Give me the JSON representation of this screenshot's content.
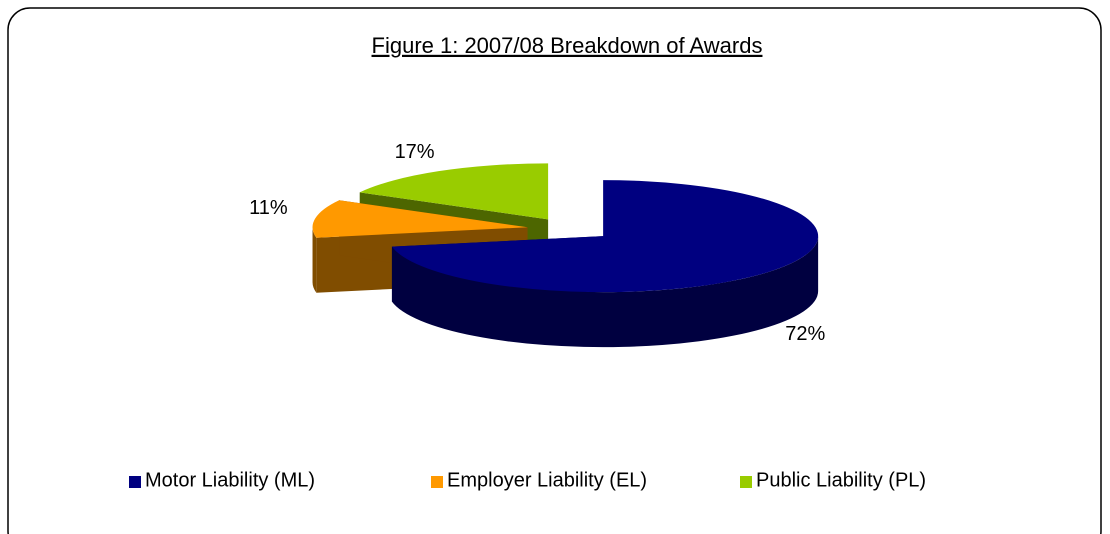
{
  "chart_data": {
    "type": "pie",
    "title": "Figure 1: 2007/08 Breakdown of Awards",
    "categories": [
      "Motor Liability (ML)",
      "Employer Liability (EL)",
      "Public Liability (PL)"
    ],
    "values": [
      72,
      11,
      17
    ],
    "value_labels": [
      "72%",
      "11%",
      "17%"
    ],
    "colors": [
      "#000080",
      "#ff9900",
      "#99cc00"
    ],
    "legend": "bottom"
  }
}
